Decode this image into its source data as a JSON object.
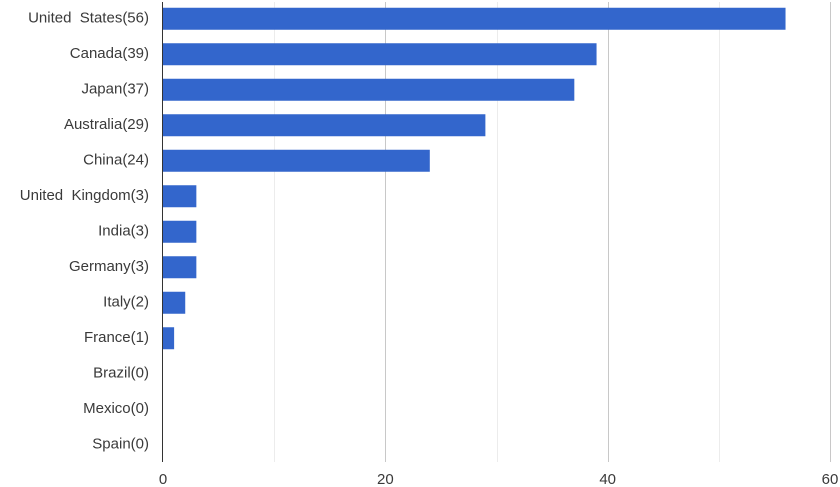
{
  "chart_data": {
    "type": "bar",
    "orientation": "horizontal",
    "categories": [
      "United  States(56)",
      "Canada(39)",
      "Japan(37)",
      "Australia(29)",
      "China(24)",
      "United  Kingdom(3)",
      "India(3)",
      "Germany(3)",
      "Italy(2)",
      "France(1)",
      "Brazil(0)",
      "Mexico(0)",
      "Spain(0)"
    ],
    "values": [
      56,
      39,
      37,
      29,
      24,
      3,
      3,
      3,
      2,
      1,
      0,
      0,
      0
    ],
    "xlim": [
      0,
      60
    ],
    "xticks": [
      0,
      20,
      40,
      60
    ],
    "x_minor_gridlines": [
      10,
      30,
      50
    ],
    "grid": true,
    "legend": "none",
    "title": "",
    "xlabel": "",
    "ylabel": "",
    "colors": {
      "bar": "#3366cc",
      "major_grid": "#c8c8c8",
      "minor_grid": "#ececec",
      "axis": "#333333",
      "text": "#3a3a3a"
    }
  }
}
